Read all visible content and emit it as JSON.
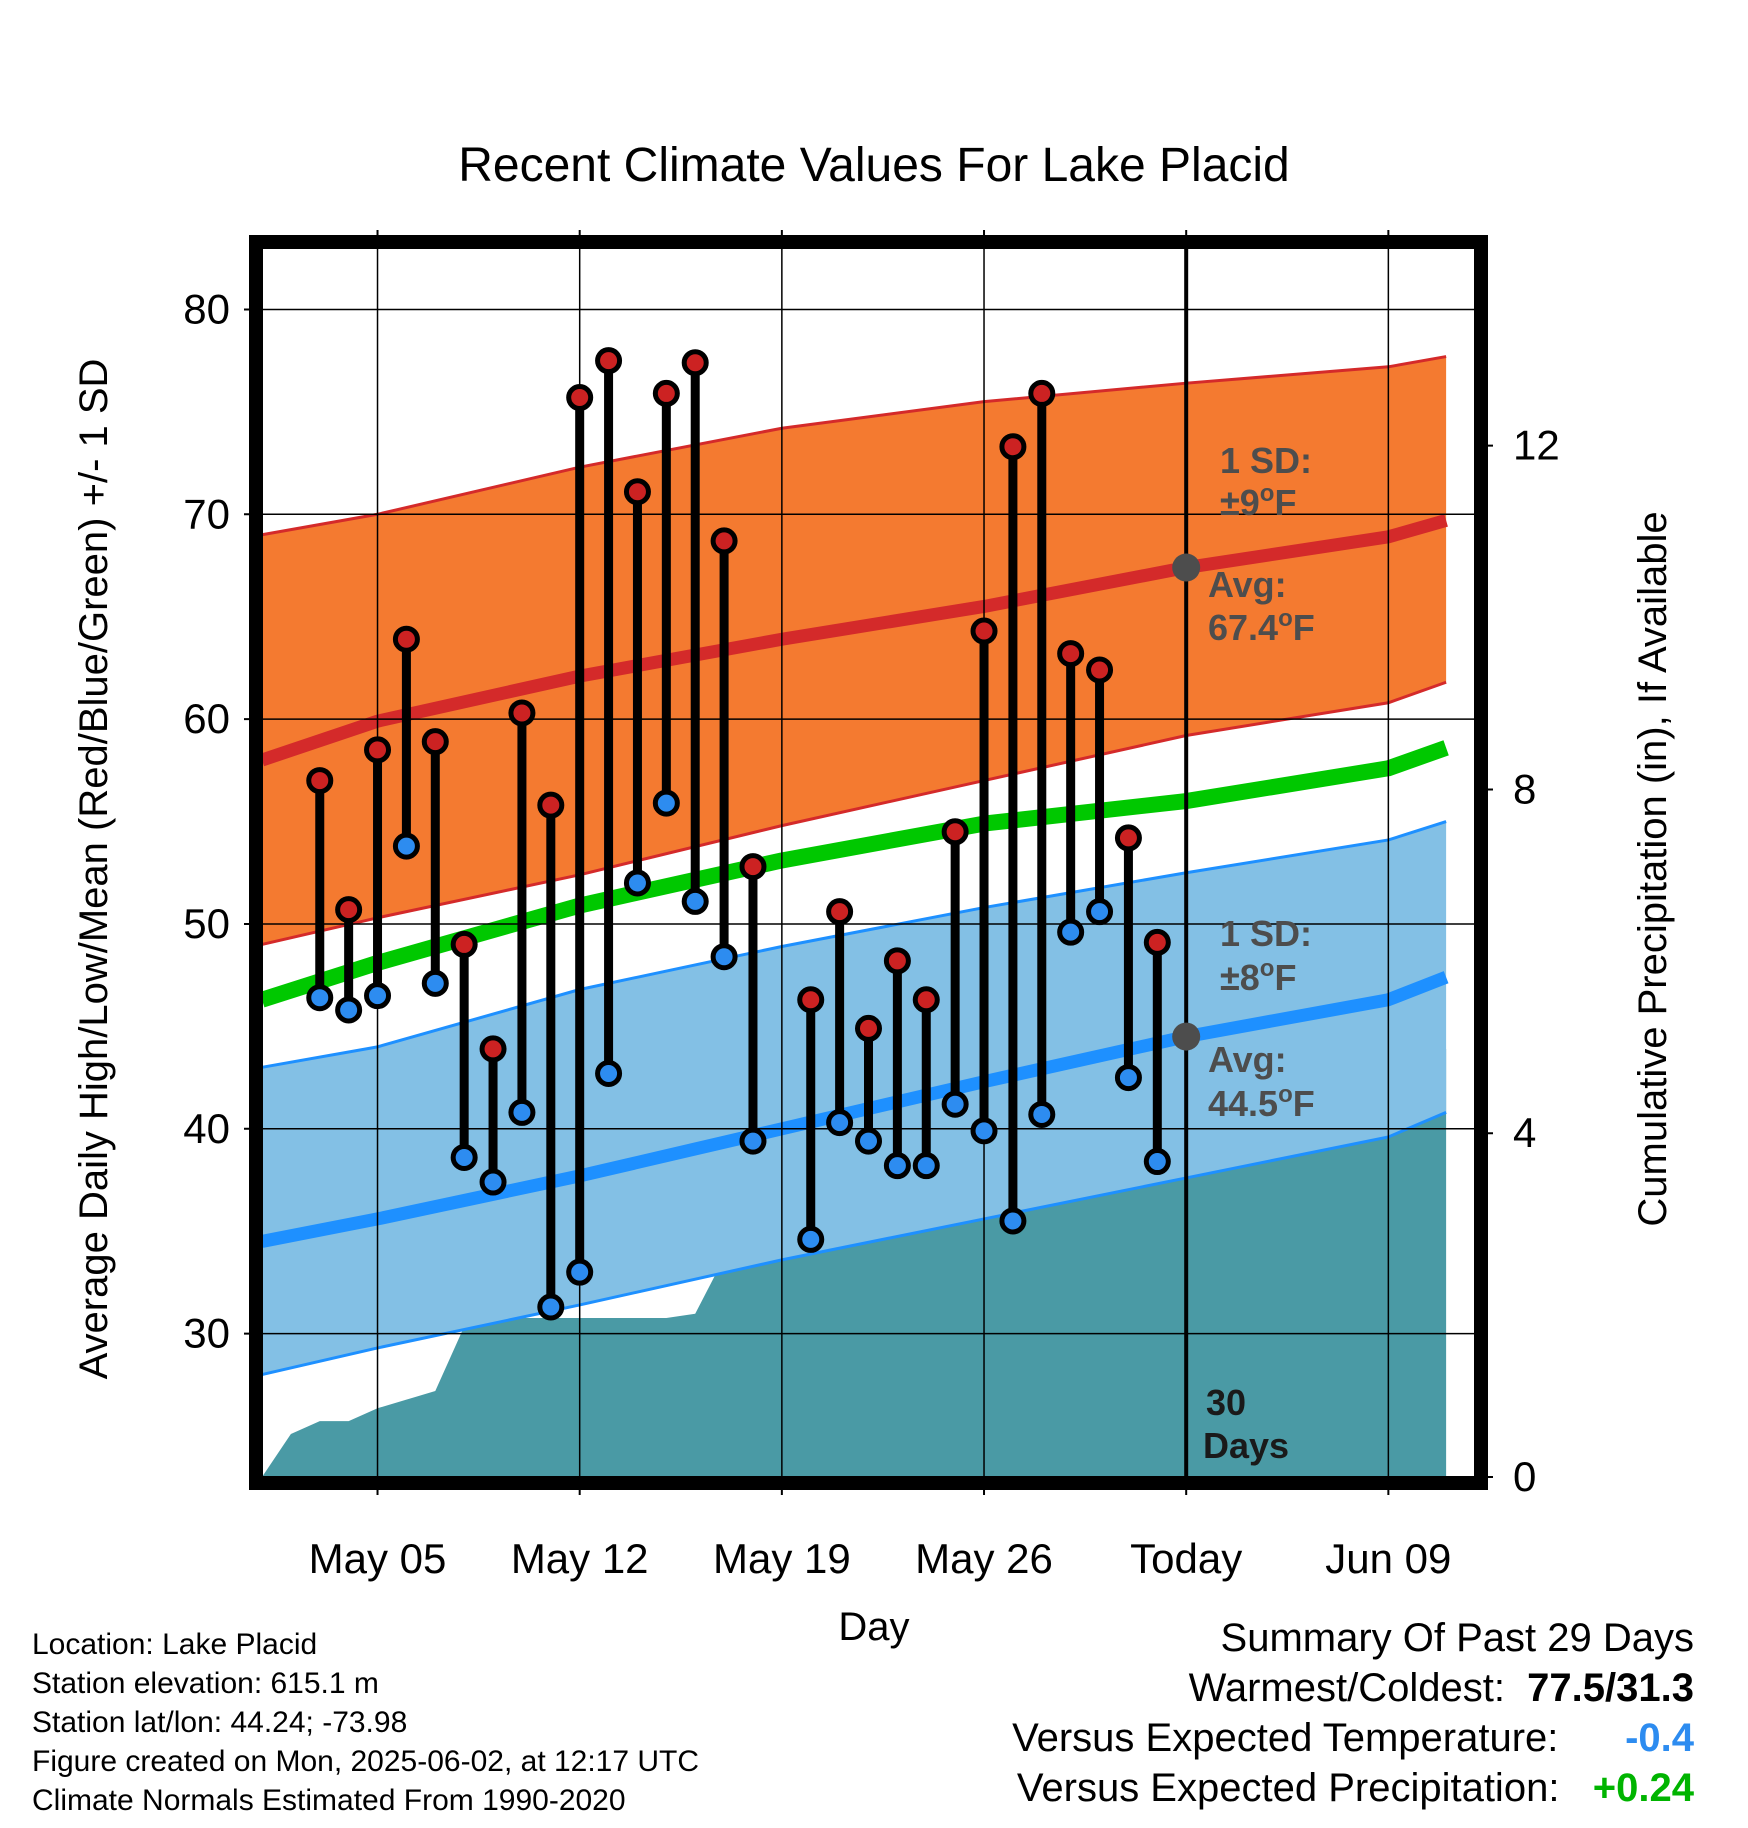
{
  "chart_data": {
    "type": "line",
    "title": "Recent Climate Values For Lake Placid",
    "xlabel": "Day",
    "ylabel": "Average Daily High/Low/Mean (Red/Blue/Green) +/- 1 SD",
    "y2label": "Cumulative Precipitation (in), If Available",
    "ylim": [
      23,
      83
    ],
    "y2lim": [
      0,
      14.3
    ],
    "xlim": [
      "2025-05-01",
      "2025-06-12"
    ],
    "x_ticks": [
      {
        "date": "2025-05-05",
        "label": "May 05"
      },
      {
        "date": "2025-05-12",
        "label": "May 12"
      },
      {
        "date": "2025-05-19",
        "label": "May 19"
      },
      {
        "date": "2025-05-26",
        "label": "May 26"
      },
      {
        "date": "2025-06-02",
        "label": "Today"
      },
      {
        "date": "2025-06-09",
        "label": "Jun 09"
      }
    ],
    "y_ticks": [
      "30",
      "40",
      "50",
      "60",
      "70",
      "80"
    ],
    "y2_ticks": [
      "0",
      "4",
      "8",
      "12"
    ],
    "grid": true,
    "normal_dates": [
      "2025-05-01",
      "2025-05-05",
      "2025-05-12",
      "2025-05-19",
      "2025-05-26",
      "2025-06-02",
      "2025-06-09",
      "2025-06-11"
    ],
    "normal_high": [
      58.0,
      59.9,
      62.1,
      63.9,
      65.5,
      67.4,
      68.9,
      69.7
    ],
    "normal_high_upper": [
      69.0,
      70.0,
      72.3,
      74.2,
      75.5,
      76.4,
      77.2,
      77.7
    ],
    "normal_high_lower": [
      49.0,
      50.3,
      52.4,
      54.8,
      57.0,
      59.2,
      60.8,
      61.8
    ],
    "normal_mean": [
      46.3,
      48.1,
      50.9,
      53.1,
      54.9,
      56.0,
      57.6,
      58.6
    ],
    "normal_low": [
      34.5,
      35.6,
      37.7,
      40.0,
      42.3,
      44.5,
      46.3,
      47.4
    ],
    "normal_low_upper": [
      43.0,
      44.0,
      46.8,
      48.9,
      50.8,
      52.5,
      54.1,
      55.0
    ],
    "normal_low_lower": [
      28.0,
      29.3,
      31.4,
      33.6,
      35.6,
      37.6,
      39.6,
      40.8
    ],
    "obs_dates": [
      "2025-05-03",
      "2025-05-04",
      "2025-05-05",
      "2025-05-06",
      "2025-05-07",
      "2025-05-08",
      "2025-05-09",
      "2025-05-10",
      "2025-05-11",
      "2025-05-12",
      "2025-05-13",
      "2025-05-14",
      "2025-05-15",
      "2025-05-16",
      "2025-05-17",
      "2025-05-18",
      "2025-05-19",
      "2025-05-20",
      "2025-05-21",
      "2025-05-22",
      "2025-05-23",
      "2025-05-24",
      "2025-05-25",
      "2025-05-26",
      "2025-05-27",
      "2025-05-28",
      "2025-05-29",
      "2025-05-30",
      "2025-05-31",
      "2025-06-01"
    ],
    "obs_high": [
      57.0,
      50.7,
      58.5,
      63.9,
      58.9,
      49.0,
      43.9,
      60.3,
      55.8,
      75.7,
      77.5,
      71.1,
      75.9,
      77.4,
      68.7,
      52.8,
      null,
      46.3,
      50.6,
      44.9,
      48.2,
      46.3,
      54.5,
      64.3,
      73.3,
      75.9,
      63.2,
      62.4,
      54.2,
      49.1
    ],
    "obs_low": [
      46.4,
      45.8,
      46.5,
      53.8,
      47.1,
      38.6,
      37.4,
      40.8,
      31.3,
      33.0,
      42.7,
      52.0,
      55.9,
      51.1,
      48.4,
      39.4,
      null,
      34.6,
      40.3,
      39.4,
      38.2,
      38.2,
      41.2,
      39.9,
      35.5,
      40.7,
      49.6,
      50.6,
      42.5,
      38.4
    ],
    "precip_dates": [
      "2025-05-01",
      "2025-05-02",
      "2025-05-03",
      "2025-05-04",
      "2025-05-05",
      "2025-05-06",
      "2025-05-07",
      "2025-05-08",
      "2025-05-09",
      "2025-05-10",
      "2025-05-11",
      "2025-05-12",
      "2025-05-13",
      "2025-05-14",
      "2025-05-15",
      "2025-05-16",
      "2025-05-17",
      "2025-05-18",
      "2025-05-19",
      "2025-05-20",
      "2025-05-21",
      "2025-05-22",
      "2025-05-23",
      "2025-05-24",
      "2025-05-25",
      "2025-05-26",
      "2025-05-27",
      "2025-05-28",
      "2025-05-29",
      "2025-05-30",
      "2025-05-31",
      "2025-06-01",
      "2025-06-02",
      "2025-06-11"
    ],
    "precip_cum": [
      0.0,
      0.5,
      0.65,
      0.65,
      0.8,
      0.9,
      1.0,
      1.75,
      1.85,
      1.85,
      1.85,
      1.85,
      1.85,
      1.85,
      1.85,
      1.9,
      2.55,
      2.95,
      3.0,
      3.0,
      3.0,
      3.0,
      3.3,
      3.65,
      3.7,
      3.7,
      3.7,
      3.72,
      3.75,
      4.9,
      4.98,
      4.98,
      4.98,
      4.98
    ],
    "annotations": {
      "high_sd": [
        "1 SD:",
        "±9",
        "o",
        "F"
      ],
      "high_avg": [
        "Avg:",
        "67.4",
        "o",
        "F"
      ],
      "low_sd": [
        "1 SD:",
        "±8",
        "o",
        "F"
      ],
      "low_avg": [
        "Avg:",
        "44.5",
        "o",
        "F"
      ],
      "days": [
        "30",
        "Days"
      ]
    },
    "colors": {
      "high_band": "#f47a30",
      "high_line": "#d42a2a",
      "mean_line": "#00c800",
      "low_band": "#83c0e5",
      "low_line": "#1e90ff",
      "precip": "#4a9aa5",
      "avg_marker": "#4d4d4d"
    }
  },
  "info": {
    "location": "Location: Lake Placid",
    "elevation": "Station elevation: 615.1 m",
    "latlon": "Station lat/lon: 44.24; -73.98",
    "created": "Figure created on Mon, 2025-06-02, at 12:17 UTC",
    "normals": "Climate Normals Estimated From 1990-2020"
  },
  "summary": {
    "title": "Summary Of Past 29 Days",
    "warm_cold_label": "Warmest/Coldest:",
    "warm_cold_value": "77.5/31.3",
    "temp_label": "Versus Expected Temperature:",
    "temp_value": "-0.4",
    "temp_color": "#2d8cf0",
    "precip_label": "Versus Expected Precipitation:",
    "precip_value": "+0.24",
    "precip_color": "#00b400"
  }
}
